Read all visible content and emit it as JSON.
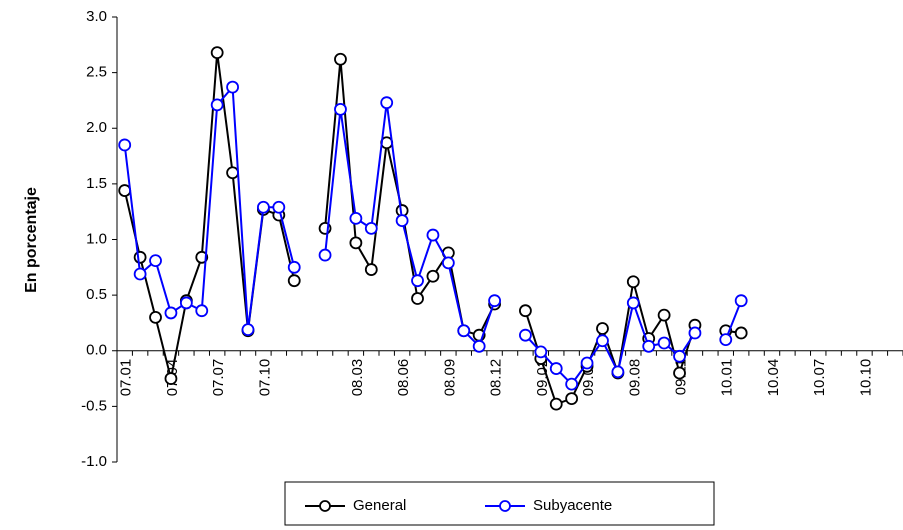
{
  "chart_data": {
    "type": "line",
    "y_label": "En porcentaje",
    "categories": [
      "07.01",
      null,
      null,
      "07.04",
      null,
      null,
      "07.07",
      null,
      null,
      "07.10",
      null,
      null,
      null,
      null,
      null,
      "08.03",
      null,
      null,
      "08.06",
      null,
      null,
      "08.09",
      null,
      null,
      "08.12",
      null,
      null,
      "09.02",
      null,
      null,
      "09.05",
      null,
      null,
      "09.08",
      null,
      null,
      "09.11",
      null,
      null,
      "10.01",
      null,
      null,
      "10.04",
      null,
      null,
      "10.07",
      null,
      null,
      "10.10",
      null,
      null
    ],
    "series": [
      {
        "name": "General",
        "color": "#000000",
        "values": [
          1.44,
          0.84,
          0.3,
          -0.25,
          0.45,
          0.84,
          2.68,
          1.6,
          0.18,
          1.27,
          1.22,
          0.63,
          null,
          1.1,
          2.62,
          0.97,
          0.73,
          1.87,
          1.26,
          0.47,
          0.67,
          0.88,
          0.18,
          0.14,
          0.42,
          null,
          0.36,
          -0.07,
          -0.48,
          -0.43,
          -0.14,
          0.2,
          -0.2,
          0.62,
          0.11,
          0.32,
          -0.2,
          0.23,
          null,
          0.18,
          0.16,
          null,
          null,
          null,
          null,
          null,
          null,
          null,
          null,
          null,
          null
        ]
      },
      {
        "name": "Subyacente",
        "color": "#0000ff",
        "values": [
          1.85,
          0.69,
          0.81,
          0.34,
          0.43,
          0.36,
          2.21,
          2.37,
          0.19,
          1.29,
          1.29,
          0.75,
          null,
          0.86,
          2.17,
          1.19,
          1.1,
          2.23,
          1.17,
          0.63,
          1.04,
          0.79,
          0.18,
          0.04,
          0.45,
          null,
          0.14,
          -0.01,
          -0.16,
          -0.3,
          -0.11,
          0.09,
          -0.19,
          0.43,
          0.04,
          0.07,
          -0.05,
          0.16,
          null,
          0.1,
          0.45,
          null,
          null,
          null,
          null,
          null,
          null,
          null,
          null,
          null,
          null
        ]
      }
    ],
    "ylim": [
      -1,
      3
    ],
    "yticks": [
      {
        "value": -1,
        "label": "-1.0"
      },
      -0.5,
      {
        "value": 0,
        "label": "0.0"
      },
      0.5,
      {
        "value": 1,
        "label": "1.0"
      },
      1.5,
      {
        "value": 2,
        "label": "2.0"
      },
      2.5,
      {
        "value": 3,
        "label": "3.0"
      }
    ],
    "legend": "bottom"
  }
}
